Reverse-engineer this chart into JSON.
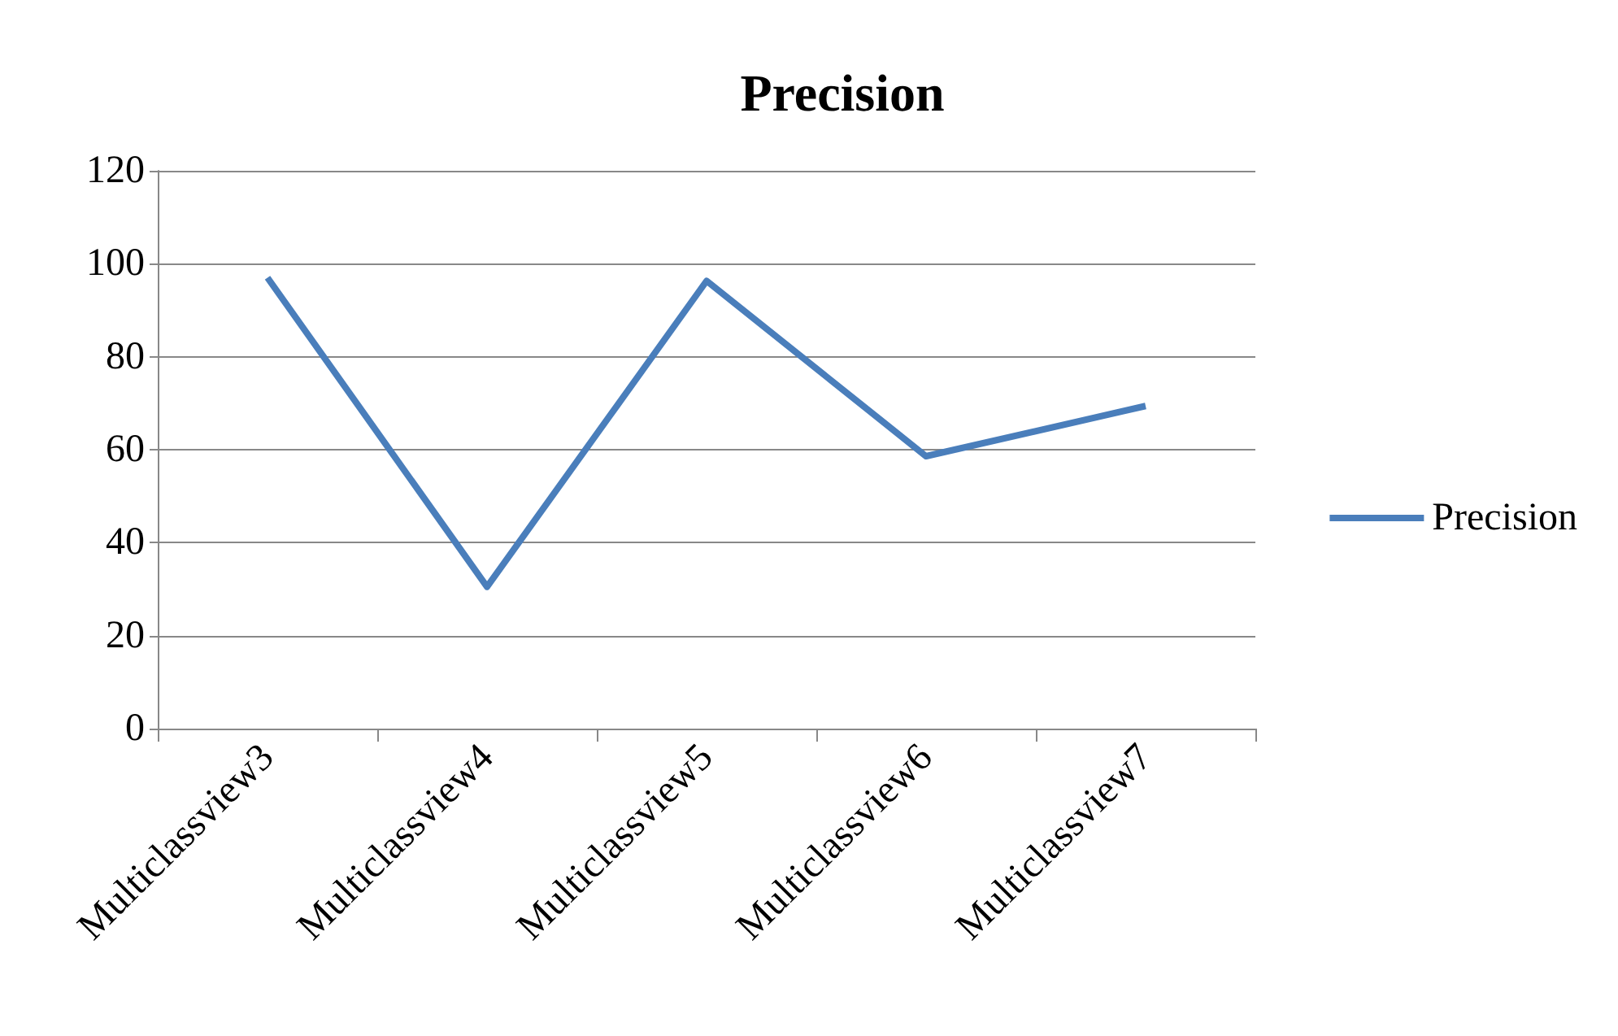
{
  "chart_data": {
    "type": "line",
    "title": "Precision",
    "categories": [
      "Multiclassview3",
      "Multiclassview4",
      "Multiclassview5",
      "Multiclassview6",
      "Multiclassview7"
    ],
    "series": [
      {
        "name": "Precision",
        "color": "#4a7ebb",
        "values": [
          97,
          30.5,
          96.3,
          58.6,
          69.4
        ]
      }
    ],
    "ylim": [
      0,
      120
    ],
    "yticks": [
      0,
      20,
      40,
      60,
      80,
      100,
      120
    ],
    "grid": "y",
    "legend": "right",
    "marker": "none"
  }
}
